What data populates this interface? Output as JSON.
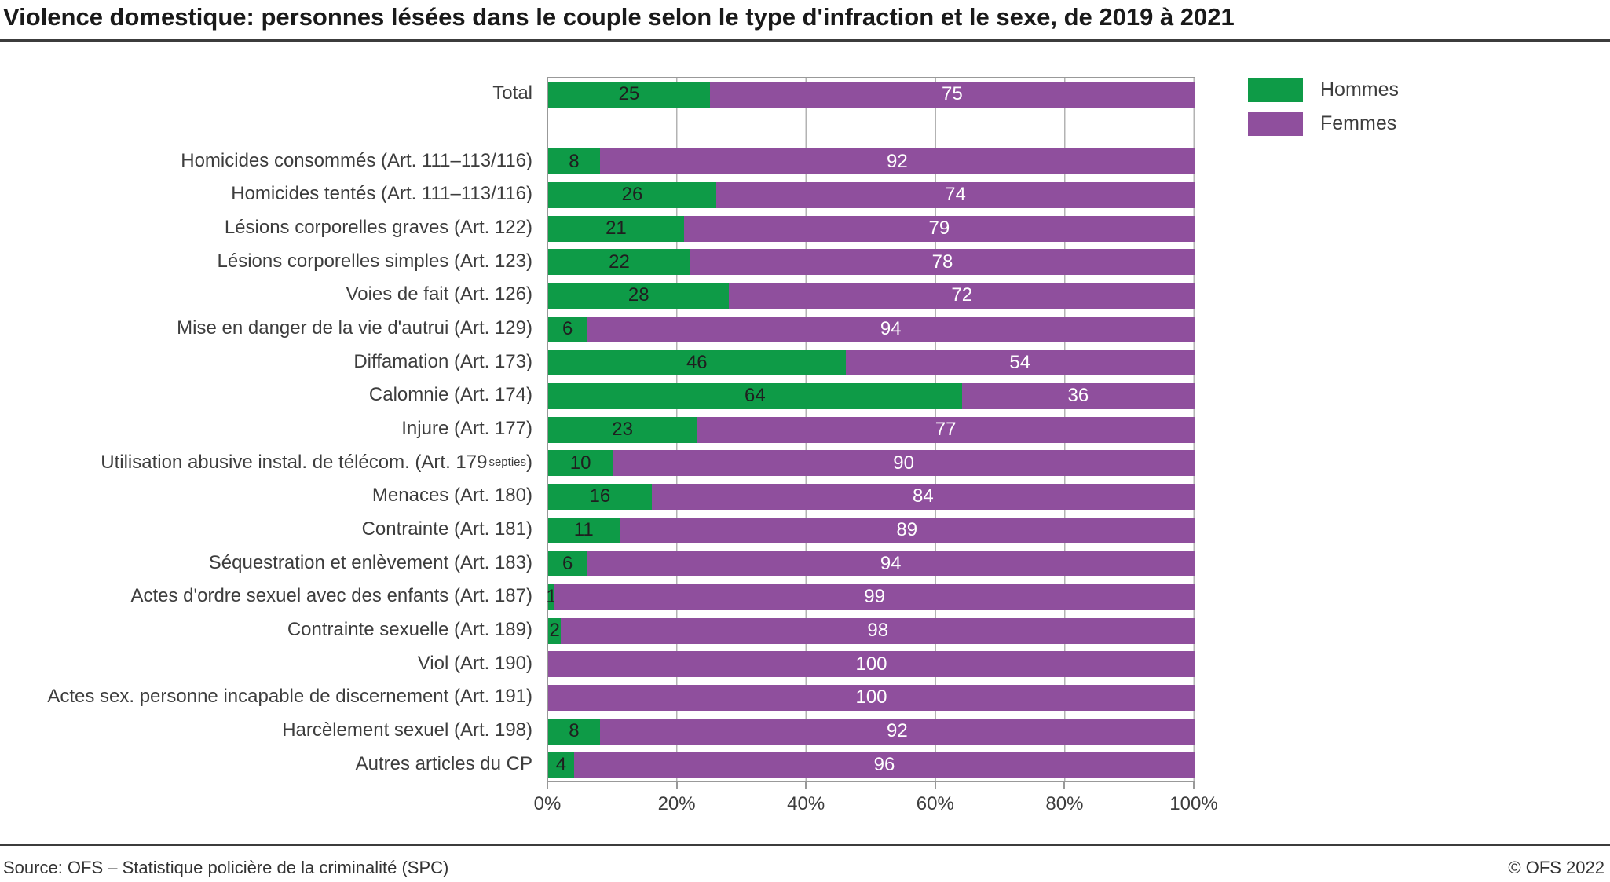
{
  "title": "Violence domestique: personnes lésées dans le couple selon le type d'infraction et le sexe, de 2019 à 2021",
  "colors": {
    "hommes": "#0E9B47",
    "femmes": "#8F4F9D",
    "gridline": "#B3B3B3",
    "plot_border": "#999999"
  },
  "legend": {
    "items": [
      {
        "label": "Hommes",
        "color": "#0E9B47"
      },
      {
        "label": "Femmes",
        "color": "#8F4F9D"
      }
    ]
  },
  "footer": {
    "source": "Source: OFS – Statistique policière de la criminalité (SPC)",
    "copyright": "© OFS 2022"
  },
  "chart_data": {
    "type": "bar",
    "stacked": true,
    "orientation": "horizontal",
    "unit": "percent",
    "xlim": [
      0,
      100
    ],
    "x_ticks": [
      "0%",
      "20%",
      "40%",
      "60%",
      "80%",
      "100%"
    ],
    "grid": true,
    "legend_position": "top-right",
    "series_names": [
      "Hommes",
      "Femmes"
    ],
    "rows": [
      {
        "label": "Total",
        "hommes": 25,
        "femmes": 75
      },
      {
        "spacer": true
      },
      {
        "label": "Homicides consommés (Art. 111–113/116)",
        "hommes": 8,
        "femmes": 92
      },
      {
        "label": "Homicides tentés (Art. 111–113/116)",
        "hommes": 26,
        "femmes": 74
      },
      {
        "label": "Lésions corporelles graves (Art. 122)",
        "hommes": 21,
        "femmes": 79
      },
      {
        "label": "Lésions corporelles simples (Art. 123)",
        "hommes": 22,
        "femmes": 78
      },
      {
        "label": "Voies de fait (Art. 126)",
        "hommes": 28,
        "femmes": 72
      },
      {
        "label": "Mise en danger de la vie d'autrui (Art. 129)",
        "hommes": 6,
        "femmes": 94
      },
      {
        "label": "Diffamation (Art. 173)",
        "hommes": 46,
        "femmes": 54
      },
      {
        "label": "Calomnie (Art. 174)",
        "hommes": 64,
        "femmes": 36
      },
      {
        "label": "Injure (Art. 177)",
        "hommes": 23,
        "femmes": 77
      },
      {
        "label": "Utilisation abusive instal. de télécom. (Art. 179",
        "label_sup": "septies",
        "label_end": ")",
        "hommes": 10,
        "femmes": 90
      },
      {
        "label": "Menaces (Art. 180)",
        "hommes": 16,
        "femmes": 84
      },
      {
        "label": "Contrainte (Art. 181)",
        "hommes": 11,
        "femmes": 89
      },
      {
        "label": "Séquestration et enlèvement (Art. 183)",
        "hommes": 6,
        "femmes": 94
      },
      {
        "label": "Actes d'ordre sexuel avec des enfants  (Art. 187)",
        "hommes": 1,
        "femmes": 99
      },
      {
        "label": "Contrainte sexuelle  (Art. 189)",
        "hommes": 2,
        "femmes": 98
      },
      {
        "label": "Viol (Art. 190)",
        "hommes": 0,
        "femmes": 100
      },
      {
        "label": "Actes sex. personne incapable de discernement (Art. 191)",
        "hommes": 0,
        "femmes": 100
      },
      {
        "label": "Harcèlement sexuel (Art. 198)",
        "hommes": 8,
        "femmes": 92
      },
      {
        "label": "Autres articles du CP",
        "hommes": 4,
        "femmes": 96
      }
    ]
  }
}
